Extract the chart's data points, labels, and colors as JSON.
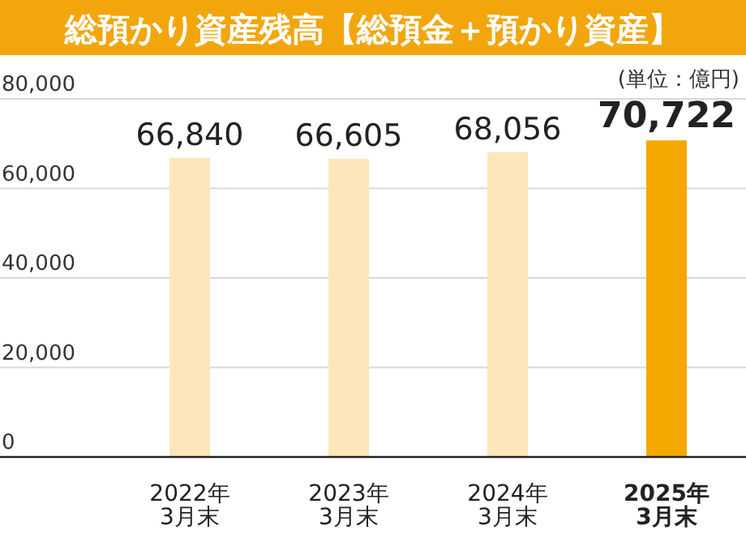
{
  "chart_data": {
    "type": "bar",
    "title": "総預かり資産残高【総預金＋預かり資産】",
    "categories": [
      "2022年\n3月末",
      "2023年\n3月末",
      "2024年\n3月末",
      "2025年\n3月末"
    ],
    "values": [
      66840,
      66605,
      68056,
      70722
    ],
    "colors": [
      "#fde6ba",
      "#fde6ba",
      "#fde6ba",
      "#f5a800"
    ],
    "ylim": [
      0,
      80000
    ],
    "yticks": [
      {
        "value": 0,
        "label": "0"
      },
      {
        "value": 20000,
        "label": "20,000"
      },
      {
        "value": 40000,
        "label": "40,000"
      },
      {
        "value": 60000,
        "label": "60,000"
      },
      {
        "value": 80000,
        "label": "80,000"
      }
    ],
    "grid": "y",
    "value_labels": [
      "66,840",
      "66,605",
      "68,056",
      "70,722"
    ],
    "annotations": [
      "(単位：億円)"
    ]
  }
}
